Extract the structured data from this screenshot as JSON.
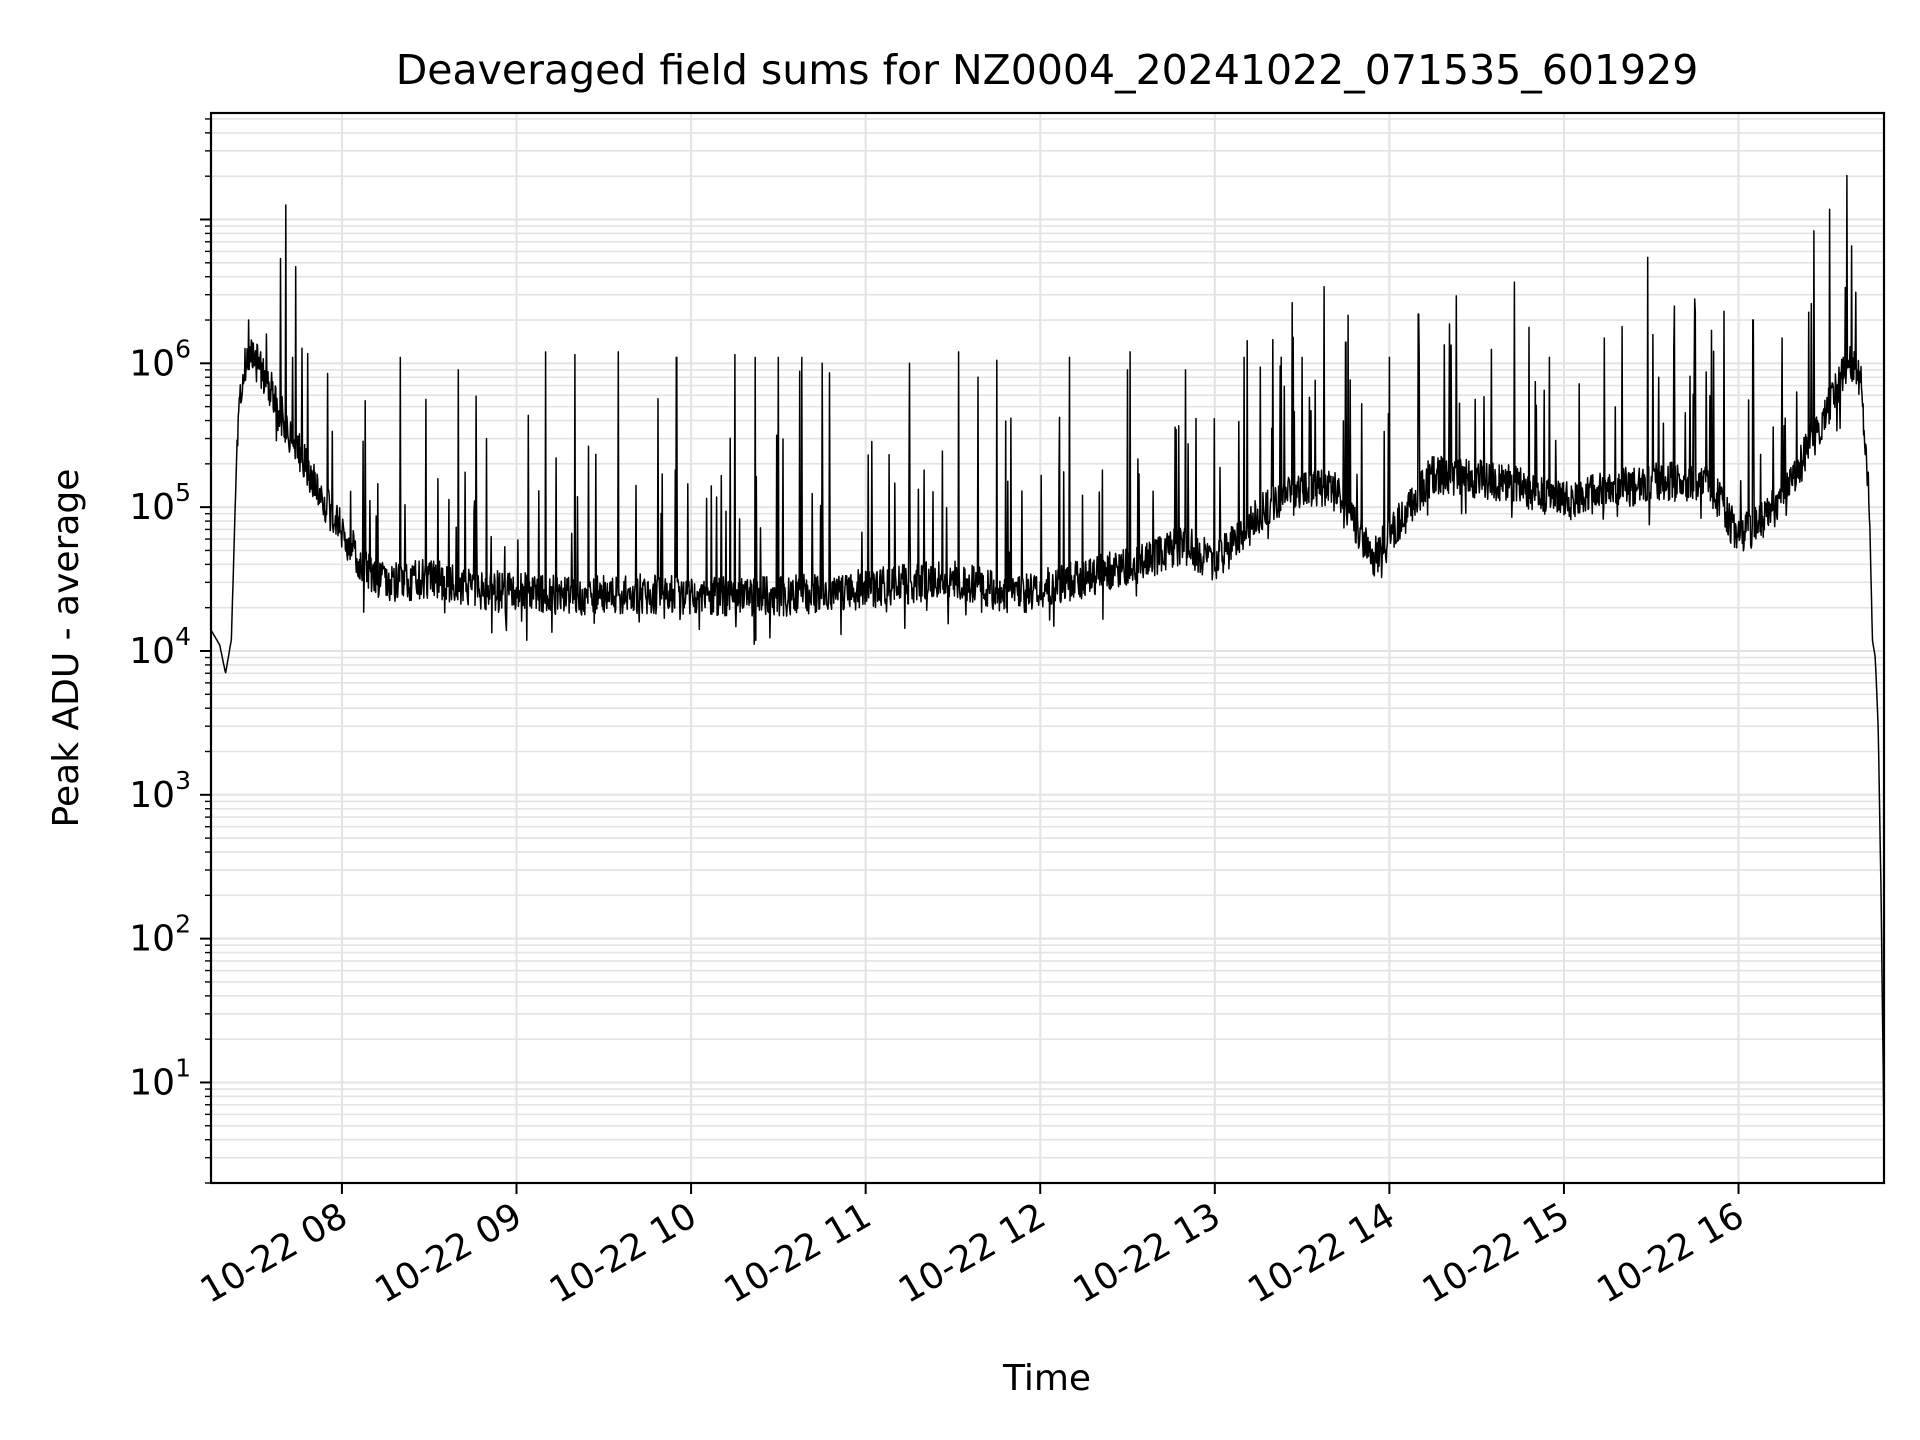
{
  "chart_data": {
    "type": "line",
    "title": "Deaveraged field sums for NZ0004_20241022_071535_601929",
    "xlabel": "Time",
    "ylabel": "Peak ADU - average",
    "y_scale": "log",
    "ylim": [
      2,
      55000000
    ],
    "xlim": [
      "2024-10-22 07:15",
      "2024-10-22 16:50"
    ],
    "x_ticks": [
      {
        "time": "2024-10-22 08:00",
        "label": "10-22 08"
      },
      {
        "time": "2024-10-22 09:00",
        "label": "10-22 09"
      },
      {
        "time": "2024-10-22 10:00",
        "label": "10-22 10"
      },
      {
        "time": "2024-10-22 11:00",
        "label": "10-22 11"
      },
      {
        "time": "2024-10-22 12:00",
        "label": "10-22 12"
      },
      {
        "time": "2024-10-22 13:00",
        "label": "10-22 13"
      },
      {
        "time": "2024-10-22 14:00",
        "label": "10-22 14"
      },
      {
        "time": "2024-10-22 15:00",
        "label": "10-22 15"
      },
      {
        "time": "2024-10-22 16:00",
        "label": "10-22 16"
      }
    ],
    "y_ticks": [
      {
        "value": 10,
        "base": "10",
        "exp": "1"
      },
      {
        "value": 100,
        "base": "10",
        "exp": "2"
      },
      {
        "value": 1000,
        "base": "10",
        "exp": "3"
      },
      {
        "value": 10000,
        "base": "10",
        "exp": "4"
      },
      {
        "value": 100000,
        "base": "10",
        "exp": "5"
      },
      {
        "value": 1000000,
        "base": "10",
        "exp": "6"
      }
    ],
    "grid": true,
    "line_color": "#000000",
    "grid_color": "#e3e3e3",
    "series": [
      {
        "baseline": [
          [
            "2024-10-22 07:15",
            14000
          ],
          [
            "2024-10-22 07:18",
            11000
          ],
          [
            "2024-10-22 07:20",
            7000
          ],
          [
            "2024-10-22 07:22",
            12000
          ],
          [
            "2024-10-22 07:24",
            300000
          ],
          [
            "2024-10-22 07:26",
            900000
          ],
          [
            "2024-10-22 07:29",
            1200000
          ],
          [
            "2024-10-22 07:32",
            900000
          ],
          [
            "2024-10-22 07:35",
            700000
          ],
          [
            "2024-10-22 07:40",
            400000
          ],
          [
            "2024-10-22 07:45",
            250000
          ],
          [
            "2024-10-22 07:50",
            150000
          ],
          [
            "2024-10-22 07:55",
            100000
          ],
          [
            "2024-10-22 08:00",
            70000
          ],
          [
            "2024-10-22 08:05",
            45000
          ],
          [
            "2024-10-22 08:12",
            32000
          ],
          [
            "2024-10-22 08:20",
            30000
          ],
          [
            "2024-10-22 08:30",
            32000
          ],
          [
            "2024-10-22 08:45",
            27000
          ],
          [
            "2024-10-22 09:00",
            26000
          ],
          [
            "2024-10-22 09:20",
            24000
          ],
          [
            "2024-10-22 09:40",
            25000
          ],
          [
            "2024-10-22 10:00",
            24000
          ],
          [
            "2024-10-22 10:30",
            24000
          ],
          [
            "2024-10-22 11:00",
            27000
          ],
          [
            "2024-10-22 11:30",
            32000
          ],
          [
            "2024-10-22 11:50",
            24000
          ],
          [
            "2024-10-22 12:10",
            30000
          ],
          [
            "2024-10-22 12:30",
            38000
          ],
          [
            "2024-10-22 12:50",
            55000
          ],
          [
            "2024-10-22 13:00",
            40000
          ],
          [
            "2024-10-22 13:20",
            110000
          ],
          [
            "2024-10-22 13:40",
            140000
          ],
          [
            "2024-10-22 13:55",
            45000
          ],
          [
            "2024-10-22 14:15",
            170000
          ],
          [
            "2024-10-22 14:40",
            150000
          ],
          [
            "2024-10-22 15:00",
            110000
          ],
          [
            "2024-10-22 15:30",
            150000
          ],
          [
            "2024-10-22 15:50",
            150000
          ],
          [
            "2024-10-22 16:00",
            60000
          ],
          [
            "2024-10-22 16:15",
            110000
          ],
          [
            "2024-10-22 16:30",
            450000
          ],
          [
            "2024-10-22 16:38",
            1000000
          ],
          [
            "2024-10-22 16:42",
            800000
          ],
          [
            "2024-10-22 16:45",
            100000
          ],
          [
            "2024-10-22 16:46",
            12000
          ],
          [
            "2024-10-22 16:47",
            9000
          ],
          [
            "2024-10-22 16:48",
            3000
          ],
          [
            "2024-10-22 16:49",
            200
          ],
          [
            "2024-10-22 16:50",
            4
          ]
        ],
        "spikes": [
          [
            "2024-10-22 07:28",
            2000000
          ],
          [
            "2024-10-22 07:34",
            1600000
          ],
          [
            "2024-10-22 07:43",
            1100000
          ],
          [
            "2024-10-22 07:55",
            850000
          ],
          [
            "2024-10-22 08:08",
            550000
          ],
          [
            "2024-10-22 08:20",
            1100000
          ],
          [
            "2024-10-22 08:40",
            900000
          ],
          [
            "2024-10-22 09:10",
            1200000
          ],
          [
            "2024-10-22 09:20",
            1150000
          ],
          [
            "2024-10-22 09:35",
            1200000
          ],
          [
            "2024-10-22 09:55",
            1100000
          ],
          [
            "2024-10-22 10:15",
            1150000
          ],
          [
            "2024-10-22 10:22",
            1100000
          ],
          [
            "2024-10-22 10:30",
            1100000
          ],
          [
            "2024-10-22 10:38",
            1100000
          ],
          [
            "2024-10-22 10:45",
            1000000
          ],
          [
            "2024-10-22 11:15",
            1000000
          ],
          [
            "2024-10-22 11:32",
            1200000
          ],
          [
            "2024-10-22 11:45",
            1050000
          ],
          [
            "2024-10-22 12:10",
            1100000
          ],
          [
            "2024-10-22 12:30",
            900000
          ],
          [
            "2024-10-22 12:50",
            900000
          ],
          [
            "2024-10-22 13:10",
            1100000
          ],
          [
            "2024-10-22 13:30",
            1100000
          ],
          [
            "2024-10-22 13:45",
            1400000
          ],
          [
            "2024-10-22 14:00",
            1100000
          ],
          [
            "2024-10-22 14:10",
            2200000
          ],
          [
            "2024-10-22 14:35",
            1250000
          ],
          [
            "2024-10-22 14:55",
            1100000
          ],
          [
            "2024-10-22 15:20",
            1800000
          ],
          [
            "2024-10-22 15:38",
            2500000
          ],
          [
            "2024-10-22 15:45",
            2800000
          ],
          [
            "2024-10-22 15:55",
            2300000
          ],
          [
            "2024-10-22 16:05",
            2000000
          ],
          [
            "2024-10-22 16:15",
            1500000
          ],
          [
            "2024-10-22 16:25",
            2600000
          ]
        ]
      }
    ]
  }
}
